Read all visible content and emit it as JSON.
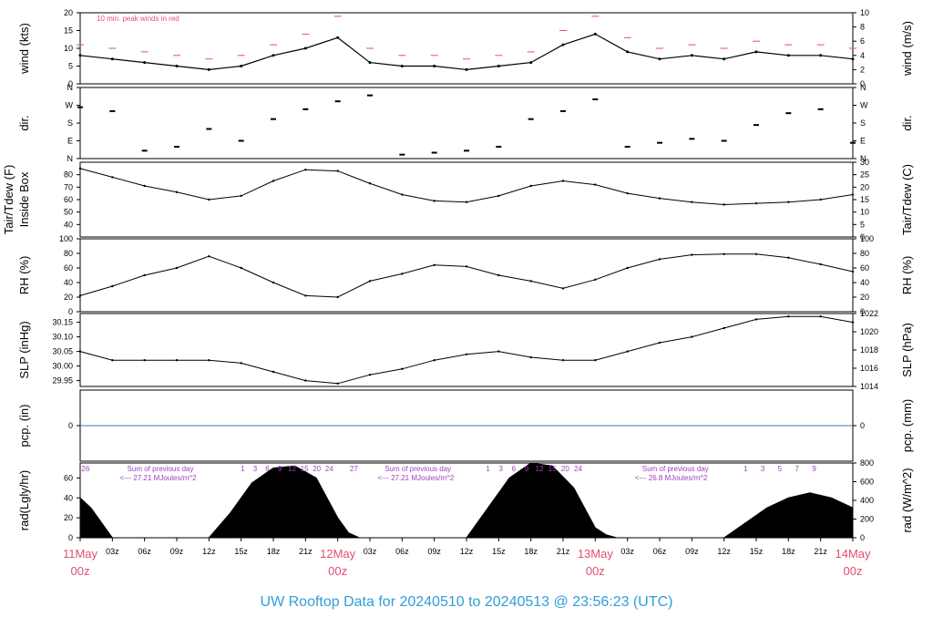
{
  "title": "UW Rooftop Data for 20240510  to  20240513 @ 23:56:23  (UTC)",
  "colors": {
    "data": "#000000",
    "peak": "#e0506e",
    "zero_line": "#4472c4",
    "time_label": "#e0506e",
    "annotation": "#a040c0",
    "title": "#2f9ed8"
  },
  "x_axis": {
    "ticks": [
      "03z",
      "06z",
      "09z",
      "12z",
      "15z",
      "18z",
      "21z",
      "03z",
      "06z",
      "09z",
      "12z",
      "15z",
      "18z",
      "21z",
      "03z",
      "06z",
      "09z",
      "12z",
      "15z",
      "18z",
      "21z"
    ],
    "day_labels": [
      {
        "date": "11May",
        "time": "00z"
      },
      {
        "date": "12May",
        "time": "00z"
      },
      {
        "date": "13May",
        "time": "00z"
      },
      {
        "date": "14May",
        "time": "00z"
      }
    ]
  },
  "chart_data": [
    {
      "type": "line",
      "id": "wind",
      "ylabel_left": "wind (kts)",
      "ylabel_right": "wind (m/s)",
      "ylim": [
        0,
        20
      ],
      "yticks_left": [
        "0",
        "5",
        "10",
        "15",
        "20"
      ],
      "yticks_right": [
        "0",
        "2",
        "4",
        "6",
        "8",
        "10"
      ],
      "annotation": "10 min. peak winds in red",
      "series": [
        {
          "x_hours": [
            0,
            3,
            6,
            9,
            12,
            15,
            18,
            21,
            24,
            27,
            30,
            33,
            36,
            39,
            42,
            45,
            48,
            51,
            54,
            57,
            60,
            63,
            66,
            69,
            72
          ],
          "values": [
            8,
            7,
            6,
            5,
            4,
            5,
            8,
            10,
            13,
            6,
            5,
            5,
            4,
            5,
            6,
            11,
            14,
            9,
            7,
            8,
            7,
            9,
            8,
            8,
            7
          ]
        },
        {
          "name": "10 min. peak winds in red",
          "x_hours": [
            0,
            3,
            6,
            9,
            12,
            15,
            18,
            21,
            24,
            27,
            30,
            33,
            36,
            39,
            42,
            45,
            48,
            51,
            54,
            57,
            60,
            63,
            66,
            69,
            72
          ],
          "values": [
            11,
            10,
            9,
            8,
            7,
            8,
            11,
            14,
            19,
            10,
            8,
            8,
            7,
            8,
            9,
            15,
            19,
            13,
            10,
            11,
            10,
            12,
            11,
            11,
            10
          ]
        }
      ]
    },
    {
      "type": "scatter",
      "id": "dir",
      "ylabel_left": "dir.",
      "ylabel_right": "dir.",
      "yticks_left": [
        "N",
        "E",
        "S",
        "W",
        "N"
      ],
      "yticks_right": [
        "N",
        "E",
        "S",
        "W",
        "N"
      ],
      "ylim": [
        0,
        360
      ],
      "x_hours": [
        0,
        3,
        6,
        9,
        12,
        15,
        18,
        21,
        24,
        27,
        30,
        33,
        36,
        39,
        42,
        45,
        48,
        51,
        54,
        57,
        60,
        63,
        66,
        69,
        72
      ],
      "values": [
        260,
        240,
        40,
        60,
        150,
        90,
        200,
        250,
        290,
        320,
        20,
        30,
        40,
        60,
        200,
        240,
        300,
        60,
        80,
        100,
        90,
        170,
        230,
        250,
        80
      ]
    },
    {
      "type": "line",
      "id": "temp",
      "ylabel_left": "Tair/Tdew (F)",
      "ylabel_left2": "Inside Box",
      "ylabel_right": "Tair/Tdew (C)",
      "ylim": [
        30,
        90
      ],
      "yticks_left": [
        "40",
        "50",
        "60",
        "70",
        "80"
      ],
      "yticks_right": [
        "0",
        "5",
        "10",
        "15",
        "20",
        "25",
        "30"
      ],
      "x_hours": [
        0,
        3,
        6,
        9,
        12,
        15,
        18,
        21,
        24,
        27,
        30,
        33,
        36,
        39,
        42,
        45,
        48,
        51,
        54,
        57,
        60,
        63,
        66,
        69,
        72
      ],
      "values": [
        85,
        78,
        71,
        66,
        60,
        63,
        75,
        84,
        83,
        73,
        64,
        59,
        58,
        63,
        71,
        75,
        72,
        65,
        61,
        58,
        56,
        57,
        58,
        60,
        64
      ]
    },
    {
      "type": "line",
      "id": "rh",
      "ylabel_left": "RH (%)",
      "ylabel_right": "RH (%)",
      "ylim": [
        0,
        100
      ],
      "yticks_left": [
        "0",
        "20",
        "40",
        "60",
        "80",
        "100"
      ],
      "yticks_right": [
        "0",
        "20",
        "40",
        "60",
        "80",
        "100"
      ],
      "x_hours": [
        0,
        3,
        6,
        9,
        12,
        15,
        18,
        21,
        24,
        27,
        30,
        33,
        36,
        39,
        42,
        45,
        48,
        51,
        54,
        57,
        60,
        63,
        66,
        69,
        72
      ],
      "values": [
        22,
        35,
        50,
        60,
        76,
        60,
        40,
        22,
        20,
        42,
        52,
        64,
        62,
        50,
        42,
        32,
        44,
        60,
        72,
        78,
        79,
        79,
        74,
        65,
        55
      ]
    },
    {
      "type": "line",
      "id": "slp",
      "ylabel_left": "SLP (inHg)",
      "ylabel_right": "SLP (hPa)",
      "ylim": [
        29.93,
        30.18
      ],
      "yticks_left": [
        "29.95",
        "30.00",
        "30.05",
        "30.10",
        "30.15"
      ],
      "yticks_right": [
        "1014",
        "1016",
        "1018",
        "1020",
        "1022"
      ],
      "x_hours": [
        0,
        3,
        6,
        9,
        12,
        15,
        18,
        21,
        24,
        27,
        30,
        33,
        36,
        39,
        42,
        45,
        48,
        51,
        54,
        57,
        60,
        63,
        66,
        69,
        72
      ],
      "values": [
        30.05,
        30.02,
        30.02,
        30.02,
        30.02,
        30.01,
        29.98,
        29.95,
        29.94,
        29.97,
        29.99,
        30.02,
        30.04,
        30.05,
        30.03,
        30.02,
        30.02,
        30.05,
        30.08,
        30.1,
        30.13,
        30.16,
        30.17,
        30.17,
        30.15
      ]
    },
    {
      "type": "line",
      "id": "pcp",
      "ylabel_left": "pcp. (in)",
      "ylabel_right": "pcp. (mm)",
      "ylim": [
        -1,
        1
      ],
      "yticks_left": [
        "0"
      ],
      "yticks_right": [
        "0"
      ],
      "x_hours": [
        0,
        72
      ],
      "values": [
        0,
        0
      ]
    },
    {
      "type": "area",
      "id": "rad",
      "ylabel_left": "rad(Lgly/hr)",
      "ylabel_right": "rad (W/m^2)",
      "ylim": [
        0,
        75
      ],
      "yticks_left": [
        "0",
        "20",
        "40",
        "60"
      ],
      "yticks_right": [
        "0",
        "200",
        "400",
        "600",
        "800"
      ],
      "annotations": [
        {
          "text": "Sum of previous day",
          "value": "<--- 27.21 MJoules/m^2"
        },
        {
          "text": "Sum of previous day",
          "value": "<--- 27.21 MJoules/m^2"
        },
        {
          "text": "Sum of previous day",
          "value": "<--- 26.8 MJoules/m^2"
        }
      ],
      "hour_labels": [
        [
          "26",
          "1",
          "3",
          "6",
          "9",
          "12",
          "15",
          "20",
          "24",
          "27"
        ],
        [
          "1",
          "3",
          "6",
          "9",
          "12",
          "15",
          "20",
          "24"
        ],
        [
          "1",
          "3",
          "5",
          "7",
          "9"
        ]
      ],
      "x_hours": [
        0,
        1,
        2,
        3,
        4,
        12,
        14,
        16,
        18,
        20,
        22,
        24,
        25,
        26,
        36,
        38,
        40,
        42,
        44,
        46,
        48,
        49,
        50,
        60,
        62,
        64,
        66,
        68,
        70,
        72
      ],
      "values": [
        40,
        30,
        15,
        0,
        0,
        0,
        25,
        55,
        70,
        72,
        60,
        20,
        5,
        0,
        0,
        30,
        60,
        75,
        72,
        50,
        10,
        3,
        0,
        0,
        15,
        30,
        40,
        45,
        40,
        30
      ]
    }
  ]
}
